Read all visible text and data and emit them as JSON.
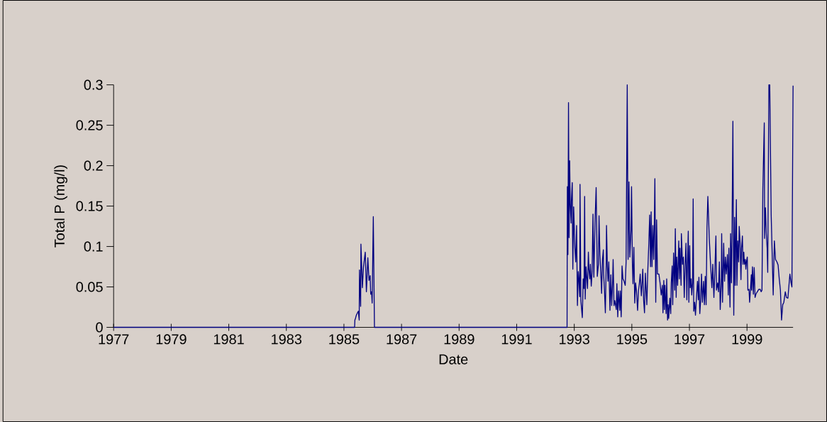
{
  "chart_data": {
    "type": "line",
    "xlabel": "Date",
    "ylabel": "Total P  (mg/l)",
    "color": "#000080",
    "xlim": [
      1977,
      2000.6
    ],
    "ylim": [
      0,
      0.3
    ],
    "xticks": [
      1977,
      1979,
      1981,
      1983,
      1985,
      1987,
      1989,
      1991,
      1993,
      1995,
      1997,
      1999
    ],
    "yticks": [
      0,
      0.05,
      0.1,
      0.15,
      0.2,
      0.25,
      0.3
    ],
    "x": [
      1977.0,
      1985.37,
      1985.38,
      1985.4,
      1985.43,
      1985.47,
      1985.5,
      1985.53,
      1985.54,
      1985.58,
      1985.59,
      1985.64,
      1985.68,
      1985.74,
      1985.78,
      1985.83,
      1985.87,
      1985.91,
      1985.93,
      1985.96,
      1985.98,
      1986.02,
      1986.06,
      1992.75,
      1992.76,
      1992.78,
      1992.8,
      1992.82,
      1992.84,
      1992.86,
      1992.89,
      1992.9,
      1992.93,
      1992.95,
      1992.98,
      1993.02,
      1993.05,
      1993.08,
      1993.11,
      1993.14,
      1993.16,
      1993.19,
      1993.2,
      1993.23,
      1993.28,
      1993.31,
      1993.34,
      1993.36,
      1993.38,
      1993.41,
      1993.46,
      1993.49,
      1993.51,
      1993.54,
      1993.56,
      1993.59,
      1993.62,
      1993.65,
      1993.68,
      1993.72,
      1993.76,
      1993.8,
      1993.84,
      1993.86,
      1993.89,
      1993.92,
      1993.95,
      1993.98,
      1994.01,
      1994.02,
      1994.05,
      1994.08,
      1994.11,
      1994.12,
      1994.15,
      1994.17,
      1994.2,
      1994.24,
      1994.27,
      1994.3,
      1994.33,
      1994.35,
      1994.38,
      1994.41,
      1994.46,
      1994.48,
      1994.51,
      1994.54,
      1994.58,
      1994.6,
      1994.63,
      1994.66,
      1994.69,
      1994.73,
      1994.77,
      1994.8,
      1994.84,
      1994.87,
      1994.9,
      1994.93,
      1994.97,
      1994.99,
      1995.02,
      1995.04,
      1995.07,
      1995.1,
      1995.13,
      1995.16,
      1995.2,
      1995.23,
      1995.26,
      1995.29,
      1995.33,
      1995.36,
      1995.38,
      1995.41,
      1995.44,
      1995.47,
      1995.52,
      1995.55,
      1995.59,
      1995.62,
      1995.65,
      1995.67,
      1995.7,
      1995.73,
      1995.76,
      1995.78,
      1995.8,
      1995.83,
      1995.86,
      1995.89,
      1995.94,
      1995.98,
      1996.02,
      1996.06,
      1996.08,
      1996.11,
      1996.13,
      1996.15,
      1996.19,
      1996.21,
      1996.24,
      1996.26,
      1996.28,
      1996.32,
      1996.35,
      1996.37,
      1996.4,
      1996.42,
      1996.45,
      1996.49,
      1996.51,
      1996.54,
      1996.56,
      1996.59,
      1996.63,
      1996.65,
      1996.67,
      1996.71,
      1996.72,
      1996.76,
      1996.79,
      1996.82,
      1996.85,
      1996.88,
      1996.91,
      1996.93,
      1996.96,
      1996.98,
      1997.01,
      1997.03,
      1997.06,
      1997.08,
      1997.11,
      1997.13,
      1997.15,
      1997.18,
      1997.21,
      1997.24,
      1997.28,
      1997.31,
      1997.33,
      1997.36,
      1997.39,
      1997.42,
      1997.45,
      1997.49,
      1997.52,
      1997.55,
      1997.58,
      1997.61,
      1997.64,
      1997.69,
      1997.73,
      1997.78,
      1997.81,
      1997.85,
      1997.88,
      1997.92,
      1997.94,
      1997.98,
      1998.01,
      1998.04,
      1998.07,
      1998.11,
      1998.12,
      1998.15,
      1998.19,
      1998.22,
      1998.25,
      1998.28,
      1998.32,
      1998.35,
      1998.37,
      1998.41,
      1998.43,
      1998.46,
      1998.48,
      1998.51,
      1998.54,
      1998.57,
      1998.59,
      1998.63,
      1998.65,
      1998.68,
      1998.71,
      1998.73,
      1998.76,
      1998.79,
      1998.81,
      1998.84,
      1998.86,
      1998.89,
      1998.91,
      1998.94,
      1998.96,
      1998.98,
      1999.01,
      1999.03,
      1999.07,
      1999.09,
      1999.12,
      1999.15,
      1999.16,
      1999.19,
      1999.22,
      1999.25,
      1999.28,
      1999.31,
      1999.34,
      1999.41,
      1999.46,
      1999.49,
      1999.52,
      1999.55,
      1999.6,
      1999.61,
      1999.64,
      1999.67,
      1999.7,
      1999.72,
      1999.76,
      1999.79,
      1999.84,
      1999.91,
      1999.95,
      1999.99,
      2000.04,
      2000.08,
      2000.12,
      2000.16,
      2000.2,
      2000.24,
      2000.28,
      2000.33,
      2000.37,
      2000.42,
      2000.49,
      2000.53,
      2000.56,
      2000.6
    ],
    "values": [
      0,
      0,
      0.009,
      0.011,
      0.015,
      0.018,
      0.02,
      0.009,
      0.071,
      0.026,
      0.103,
      0.049,
      0.075,
      0.093,
      0.044,
      0.086,
      0.058,
      0.064,
      0.041,
      0.044,
      0.03,
      0.137,
      0,
      0,
      0.174,
      0.09,
      0.278,
      0.111,
      0.206,
      0.153,
      0.129,
      0.156,
      0.179,
      0.072,
      0.149,
      0.099,
      0.081,
      0.126,
      0.027,
      0.069,
      0.06,
      0.038,
      0.177,
      0.033,
      0.012,
      0.06,
      0.048,
      0.162,
      0.035,
      0.075,
      0.048,
      0.093,
      0.072,
      0.06,
      0.078,
      0.051,
      0.069,
      0.14,
      0.062,
      0.129,
      0.173,
      0.063,
      0.078,
      0.138,
      0.09,
      0.069,
      0.042,
      0.084,
      0.096,
      0.066,
      0.045,
      0.018,
      0.081,
      0.126,
      0.075,
      0.057,
      0.081,
      0.021,
      0.065,
      0.027,
      0.054,
      0.084,
      0.027,
      0.033,
      0.022,
      0.054,
      0.013,
      0.045,
      0.021,
      0.045,
      0.013,
      0.076,
      0.06,
      0.057,
      0.052,
      0.081,
      0.3,
      0.084,
      0.18,
      0.087,
      0.12,
      0.174,
      0.078,
      0.054,
      0.099,
      0.03,
      0.055,
      0.045,
      0.021,
      0.045,
      0.054,
      0.066,
      0.039,
      0.057,
      0.072,
      0.033,
      0.018,
      0.067,
      0.028,
      0.066,
      0.104,
      0.139,
      0.075,
      0.143,
      0.075,
      0.126,
      0.084,
      0.124,
      0.184,
      0.031,
      0.133,
      0.066,
      0.066,
      0.055,
      0.04,
      0.052,
      0.018,
      0.058,
      0.022,
      0.052,
      0.017,
      0.06,
      0.009,
      0.028,
      0.011,
      0.036,
      0.017,
      0.055,
      0.076,
      0.028,
      0.092,
      0.046,
      0.122,
      0.037,
      0.087,
      0.052,
      0.107,
      0.06,
      0.098,
      0.052,
      0.116,
      0.078,
      0.087,
      0.037,
      0.075,
      0.104,
      0.034,
      0.075,
      0.119,
      0.031,
      0.101,
      0.049,
      0.06,
      0.04,
      0.055,
      0.159,
      0.02,
      0.031,
      0.015,
      0.034,
      0.057,
      0.034,
      0.062,
      0.017,
      0.034,
      0.066,
      0.031,
      0.057,
      0.028,
      0.063,
      0.028,
      0.124,
      0.162,
      0.11,
      0.081,
      0.049,
      0.078,
      0.037,
      0.066,
      0.113,
      0.046,
      0.055,
      0.044,
      0.081,
      0.022,
      0.06,
      0.116,
      0.031,
      0.104,
      0.057,
      0.087,
      0.066,
      0.09,
      0.04,
      0.098,
      0.025,
      0.116,
      0.055,
      0.119,
      0.255,
      0.015,
      0.136,
      0.052,
      0.158,
      0.052,
      0.107,
      0.081,
      0.125,
      0.104,
      0.059,
      0.098,
      0.113,
      0.078,
      0.093,
      0.078,
      0.084,
      0.072,
      0.081,
      0.087,
      0.046,
      0.047,
      0.031,
      0.046,
      0.065,
      0.046,
      0.075,
      0.041,
      0.074,
      0.037,
      0.041,
      0.043,
      0.047,
      0.047,
      0.044,
      0.046,
      0.171,
      0.253,
      0.11,
      0.148,
      0.116,
      0.098,
      0.068,
      0.3,
      0.3,
      0.139,
      0.04,
      0.107,
      0.084,
      0.081,
      0.077,
      0.06,
      0.046,
      0.009,
      0.028,
      0.031,
      0.044,
      0.037,
      0.036,
      0.066,
      0.055,
      0.05,
      0.299
    ]
  }
}
